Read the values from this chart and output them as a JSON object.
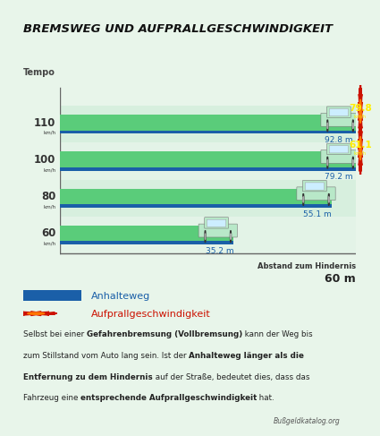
{
  "title": "BREMSWEG UND AUFPRALLGESCHWINDIGKEIT",
  "title_bg": "#5acc7a",
  "bg_color": "#e8f5ea",
  "bar_color": "#5acc7a",
  "blue_bar_color": "#1a5fa8",
  "speeds": [
    110,
    100,
    80,
    60
  ],
  "distances": [
    92.8,
    79.2,
    55.1,
    35.2
  ],
  "ref_distance": 60,
  "impact_speeds": [
    79.8,
    61.1,
    null,
    null
  ],
  "distance_label": "Abstand zum Hindernis",
  "distance_value": "60 m",
  "legend_anhalteweg": "Anhalteweg",
  "legend_aufprall": "Aufprallgeschwindigkeit",
  "source": "Bußgeldkatalog.org",
  "tempo_label": "Tempo",
  "annotation_color": "#1a5fa8",
  "speed_label_color": "#333333",
  "line_color": "#888888",
  "stripe_colors": [
    "#dff2e6",
    "#c8ead4"
  ],
  "red_burst": "#cc1100",
  "orange_inner": "#ff7700",
  "yellow_text": "#ffee00"
}
